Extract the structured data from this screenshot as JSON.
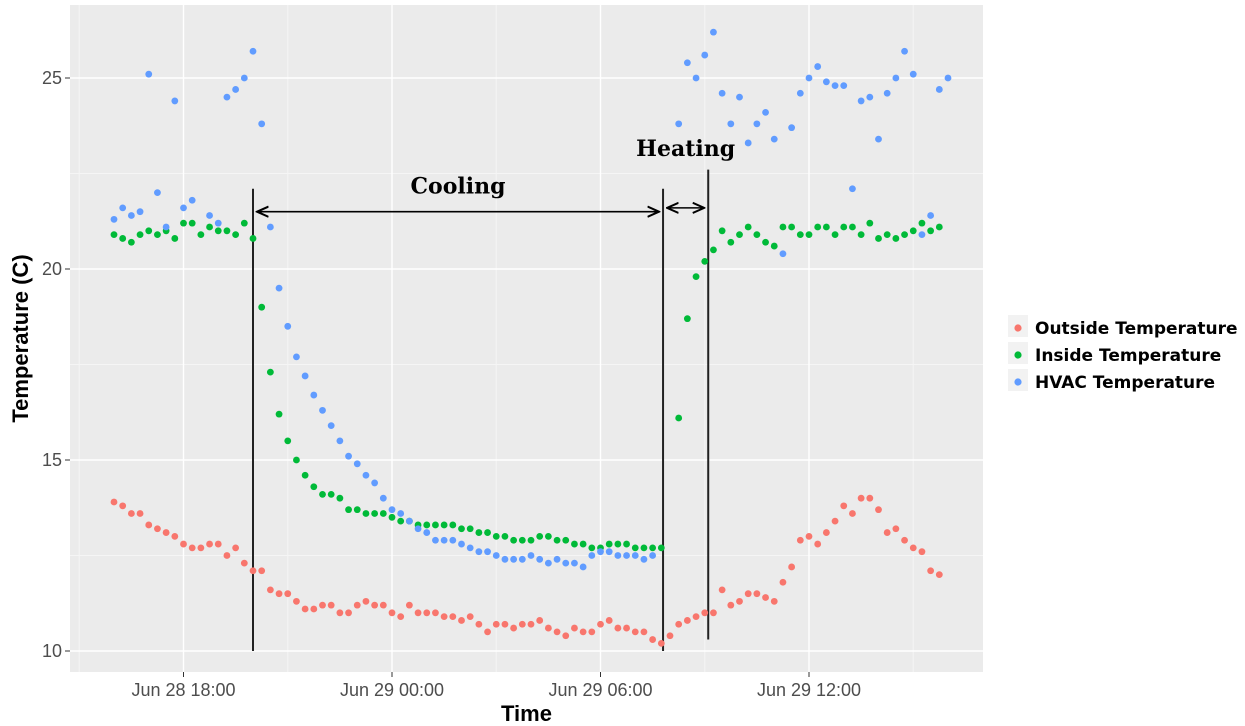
{
  "chart_data": {
    "type": "scatter",
    "title": "",
    "xlabel": "Time",
    "ylabel": "Temperature (C)",
    "xlim": [
      -2.0,
      22.0
    ],
    "ylim": [
      9.5,
      27.0
    ],
    "x_unit": "hours from Jun 28 18:00",
    "x_ticks": [
      {
        "value": 0,
        "label": "Jun 28 18:00"
      },
      {
        "value": 6,
        "label": "Jun 29 00:00"
      },
      {
        "value": 12,
        "label": "Jun 29 06:00"
      },
      {
        "value": 18,
        "label": "Jun 29 12:00"
      }
    ],
    "y_ticks": [
      {
        "value": 10,
        "label": "10"
      },
      {
        "value": 15,
        "label": "15"
      },
      {
        "value": 20,
        "label": "20"
      },
      {
        "value": 25,
        "label": "25"
      }
    ],
    "grid": true,
    "legend_position": "right",
    "series": [
      {
        "name": "Outside Temperature",
        "color": "#F8766D",
        "points": [
          [
            -2.0,
            13.9
          ],
          [
            -1.75,
            13.8
          ],
          [
            -1.5,
            13.6
          ],
          [
            -1.25,
            13.6
          ],
          [
            -1.0,
            13.3
          ],
          [
            -0.75,
            13.2
          ],
          [
            -0.5,
            13.1
          ],
          [
            -0.25,
            13.0
          ],
          [
            0.0,
            12.8
          ],
          [
            0.25,
            12.7
          ],
          [
            0.5,
            12.7
          ],
          [
            0.75,
            12.8
          ],
          [
            1.0,
            12.8
          ],
          [
            1.25,
            12.5
          ],
          [
            1.5,
            12.7
          ],
          [
            1.75,
            12.3
          ],
          [
            2.0,
            12.1
          ],
          [
            2.25,
            12.1
          ],
          [
            2.5,
            11.6
          ],
          [
            2.75,
            11.5
          ],
          [
            3.0,
            11.5
          ],
          [
            3.25,
            11.3
          ],
          [
            3.5,
            11.1
          ],
          [
            3.75,
            11.1
          ],
          [
            4.0,
            11.2
          ],
          [
            4.25,
            11.2
          ],
          [
            4.5,
            11.0
          ],
          [
            4.75,
            11.0
          ],
          [
            5.0,
            11.2
          ],
          [
            5.25,
            11.3
          ],
          [
            5.5,
            11.2
          ],
          [
            5.75,
            11.2
          ],
          [
            6.0,
            11.0
          ],
          [
            6.25,
            10.9
          ],
          [
            6.5,
            11.2
          ],
          [
            6.75,
            11.0
          ],
          [
            7.0,
            11.0
          ],
          [
            7.25,
            11.0
          ],
          [
            7.5,
            10.9
          ],
          [
            7.75,
            10.9
          ],
          [
            8.0,
            10.8
          ],
          [
            8.25,
            10.9
          ],
          [
            8.5,
            10.7
          ],
          [
            8.75,
            10.5
          ],
          [
            9.0,
            10.7
          ],
          [
            9.25,
            10.7
          ],
          [
            9.5,
            10.6
          ],
          [
            9.75,
            10.7
          ],
          [
            10.0,
            10.7
          ],
          [
            10.25,
            10.8
          ],
          [
            10.5,
            10.6
          ],
          [
            10.75,
            10.5
          ],
          [
            11.0,
            10.4
          ],
          [
            11.25,
            10.6
          ],
          [
            11.5,
            10.5
          ],
          [
            11.75,
            10.5
          ],
          [
            12.0,
            10.7
          ],
          [
            12.25,
            10.8
          ],
          [
            12.5,
            10.6
          ],
          [
            12.75,
            10.6
          ],
          [
            13.0,
            10.5
          ],
          [
            13.25,
            10.5
          ],
          [
            13.5,
            10.3
          ],
          [
            13.75,
            10.2
          ],
          [
            14.0,
            10.4
          ],
          [
            14.25,
            10.7
          ],
          [
            14.5,
            10.8
          ],
          [
            14.75,
            10.9
          ],
          [
            15.0,
            11.0
          ],
          [
            15.25,
            11.0
          ],
          [
            15.5,
            11.6
          ],
          [
            15.75,
            11.2
          ],
          [
            16.0,
            11.3
          ],
          [
            16.25,
            11.5
          ],
          [
            16.5,
            11.5
          ],
          [
            16.75,
            11.4
          ],
          [
            17.0,
            11.3
          ],
          [
            17.25,
            11.8
          ],
          [
            17.5,
            12.2
          ],
          [
            17.75,
            12.9
          ],
          [
            18.0,
            13.0
          ],
          [
            18.25,
            12.8
          ],
          [
            18.5,
            13.1
          ],
          [
            18.75,
            13.4
          ],
          [
            19.0,
            13.8
          ],
          [
            19.25,
            13.6
          ],
          [
            19.5,
            14.0
          ],
          [
            19.75,
            14.0
          ],
          [
            20.0,
            13.7
          ],
          [
            20.25,
            13.1
          ],
          [
            20.5,
            13.2
          ],
          [
            20.75,
            12.9
          ],
          [
            21.0,
            12.7
          ],
          [
            21.25,
            12.6
          ],
          [
            21.5,
            12.1
          ],
          [
            21.75,
            12.0
          ]
        ]
      },
      {
        "name": "Inside Temperature",
        "color": "#00BA38",
        "points": [
          [
            -2.0,
            20.9
          ],
          [
            -1.75,
            20.8
          ],
          [
            -1.5,
            20.7
          ],
          [
            -1.25,
            20.9
          ],
          [
            -1.0,
            21.0
          ],
          [
            -0.75,
            20.9
          ],
          [
            -0.5,
            21.0
          ],
          [
            -0.25,
            20.8
          ],
          [
            0.0,
            21.2
          ],
          [
            0.25,
            21.2
          ],
          [
            0.5,
            20.9
          ],
          [
            0.75,
            21.1
          ],
          [
            1.0,
            21.0
          ],
          [
            1.25,
            21.0
          ],
          [
            1.5,
            20.9
          ],
          [
            1.75,
            21.2
          ],
          [
            2.0,
            20.8
          ],
          [
            2.25,
            19.0
          ],
          [
            2.5,
            17.3
          ],
          [
            2.75,
            16.2
          ],
          [
            3.0,
            15.5
          ],
          [
            3.25,
            15.0
          ],
          [
            3.5,
            14.6
          ],
          [
            3.75,
            14.3
          ],
          [
            4.0,
            14.1
          ],
          [
            4.25,
            14.1
          ],
          [
            4.5,
            14.0
          ],
          [
            4.75,
            13.7
          ],
          [
            5.0,
            13.7
          ],
          [
            5.25,
            13.6
          ],
          [
            5.5,
            13.6
          ],
          [
            5.75,
            13.6
          ],
          [
            6.0,
            13.5
          ],
          [
            6.25,
            13.4
          ],
          [
            6.5,
            13.4
          ],
          [
            6.75,
            13.3
          ],
          [
            7.0,
            13.3
          ],
          [
            7.25,
            13.3
          ],
          [
            7.5,
            13.3
          ],
          [
            7.75,
            13.3
          ],
          [
            8.0,
            13.2
          ],
          [
            8.25,
            13.2
          ],
          [
            8.5,
            13.1
          ],
          [
            8.75,
            13.1
          ],
          [
            9.0,
            13.0
          ],
          [
            9.25,
            13.0
          ],
          [
            9.5,
            12.9
          ],
          [
            9.75,
            12.9
          ],
          [
            10.0,
            12.9
          ],
          [
            10.25,
            13.0
          ],
          [
            10.5,
            13.0
          ],
          [
            10.75,
            12.9
          ],
          [
            11.0,
            12.9
          ],
          [
            11.25,
            12.8
          ],
          [
            11.5,
            12.8
          ],
          [
            11.75,
            12.7
          ],
          [
            12.0,
            12.7
          ],
          [
            12.25,
            12.8
          ],
          [
            12.5,
            12.8
          ],
          [
            12.75,
            12.8
          ],
          [
            13.0,
            12.7
          ],
          [
            13.25,
            12.7
          ],
          [
            13.5,
            12.7
          ],
          [
            13.75,
            12.7
          ],
          [
            14.25,
            16.1
          ],
          [
            14.5,
            18.7
          ],
          [
            14.75,
            19.8
          ],
          [
            15.0,
            20.2
          ],
          [
            15.25,
            20.5
          ],
          [
            15.5,
            21.0
          ],
          [
            15.75,
            20.7
          ],
          [
            16.0,
            20.9
          ],
          [
            16.25,
            21.1
          ],
          [
            16.5,
            20.9
          ],
          [
            16.75,
            20.7
          ],
          [
            17.0,
            20.6
          ],
          [
            17.25,
            21.1
          ],
          [
            17.5,
            21.1
          ],
          [
            17.75,
            20.9
          ],
          [
            18.0,
            20.9
          ],
          [
            18.25,
            21.1
          ],
          [
            18.5,
            21.1
          ],
          [
            18.75,
            20.9
          ],
          [
            19.0,
            21.1
          ],
          [
            19.25,
            21.1
          ],
          [
            19.5,
            20.9
          ],
          [
            19.75,
            21.2
          ],
          [
            20.0,
            20.8
          ],
          [
            20.25,
            20.9
          ],
          [
            20.5,
            20.8
          ],
          [
            20.75,
            20.9
          ],
          [
            21.0,
            21.0
          ],
          [
            21.25,
            21.2
          ],
          [
            21.5,
            21.0
          ],
          [
            21.75,
            21.1
          ]
        ]
      },
      {
        "name": "HVAC Temperature",
        "color": "#619CFF",
        "points": [
          [
            -2.0,
            21.3
          ],
          [
            -1.75,
            21.6
          ],
          [
            -1.5,
            21.4
          ],
          [
            -1.25,
            21.5
          ],
          [
            -1.0,
            25.1
          ],
          [
            -0.75,
            22.0
          ],
          [
            -0.5,
            21.1
          ],
          [
            -0.25,
            24.4
          ],
          [
            0.0,
            21.6
          ],
          [
            0.25,
            21.8
          ],
          [
            0.75,
            21.4
          ],
          [
            1.0,
            21.2
          ],
          [
            1.25,
            24.5
          ],
          [
            1.5,
            24.7
          ],
          [
            1.75,
            25.0
          ],
          [
            2.0,
            25.7
          ],
          [
            2.25,
            23.8
          ],
          [
            2.5,
            21.1
          ],
          [
            2.75,
            19.5
          ],
          [
            3.0,
            18.5
          ],
          [
            3.25,
            17.7
          ],
          [
            3.5,
            17.2
          ],
          [
            3.75,
            16.7
          ],
          [
            4.0,
            16.3
          ],
          [
            4.25,
            15.9
          ],
          [
            4.5,
            15.5
          ],
          [
            4.75,
            15.1
          ],
          [
            5.0,
            14.9
          ],
          [
            5.25,
            14.6
          ],
          [
            5.5,
            14.4
          ],
          [
            5.75,
            14.0
          ],
          [
            6.0,
            13.7
          ],
          [
            6.25,
            13.6
          ],
          [
            6.5,
            13.4
          ],
          [
            6.75,
            13.2
          ],
          [
            7.0,
            13.1
          ],
          [
            7.25,
            12.9
          ],
          [
            7.5,
            12.9
          ],
          [
            7.75,
            12.9
          ],
          [
            8.0,
            12.8
          ],
          [
            8.25,
            12.7
          ],
          [
            8.5,
            12.6
          ],
          [
            8.75,
            12.6
          ],
          [
            9.0,
            12.5
          ],
          [
            9.25,
            12.4
          ],
          [
            9.5,
            12.4
          ],
          [
            9.75,
            12.4
          ],
          [
            10.0,
            12.5
          ],
          [
            10.25,
            12.4
          ],
          [
            10.5,
            12.3
          ],
          [
            10.75,
            12.4
          ],
          [
            11.0,
            12.3
          ],
          [
            11.25,
            12.3
          ],
          [
            11.5,
            12.2
          ],
          [
            11.75,
            12.5
          ],
          [
            12.0,
            12.6
          ],
          [
            12.25,
            12.6
          ],
          [
            12.5,
            12.5
          ],
          [
            12.75,
            12.5
          ],
          [
            13.0,
            12.5
          ],
          [
            13.25,
            12.4
          ],
          [
            13.5,
            12.5
          ],
          [
            14.25,
            23.8
          ],
          [
            14.5,
            25.4
          ],
          [
            14.75,
            25.0
          ],
          [
            15.0,
            25.6
          ],
          [
            15.25,
            26.2
          ],
          [
            15.5,
            24.6
          ],
          [
            15.75,
            23.8
          ],
          [
            16.0,
            24.5
          ],
          [
            16.25,
            23.3
          ],
          [
            16.5,
            23.8
          ],
          [
            16.75,
            24.1
          ],
          [
            17.0,
            23.4
          ],
          [
            17.25,
            20.4
          ],
          [
            17.5,
            23.7
          ],
          [
            17.75,
            24.6
          ],
          [
            18.0,
            25.0
          ],
          [
            18.25,
            25.3
          ],
          [
            18.5,
            24.9
          ],
          [
            18.75,
            24.8
          ],
          [
            19.0,
            24.8
          ],
          [
            19.25,
            22.1
          ],
          [
            19.5,
            24.4
          ],
          [
            19.75,
            24.5
          ],
          [
            20.0,
            23.4
          ],
          [
            20.25,
            24.6
          ],
          [
            20.5,
            25.0
          ],
          [
            20.75,
            25.7
          ],
          [
            21.0,
            25.1
          ],
          [
            21.25,
            20.9
          ],
          [
            21.5,
            21.4
          ],
          [
            21.75,
            24.7
          ],
          [
            22.0,
            25.0
          ]
        ]
      }
    ],
    "annotations": [
      {
        "label": "Cooling",
        "x_start": 2.0,
        "x_end": 13.8,
        "arrow_y": 21.5,
        "line_y_min": 10.0,
        "line_y_max": 22.1
      },
      {
        "label": "Heating",
        "x_start": 13.8,
        "x_end": 15.1,
        "arrow_y": 21.6,
        "line_y_min": 10.3,
        "line_y_max": 22.6
      }
    ]
  }
}
